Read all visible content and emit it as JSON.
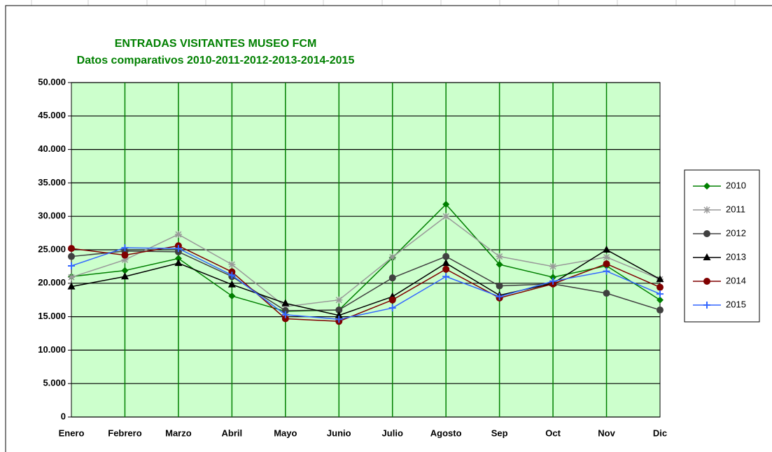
{
  "chart_data": {
    "type": "line",
    "title": "ENTRADAS VISITANTES MUSEO FCM",
    "subtitle": "Datos comparativos  2010-2011-2012-2013-2014-2015",
    "categories": [
      "Enero",
      "Febrero",
      "Marzo",
      "Abril",
      "Mayo",
      "Junio",
      "Julio",
      "Agosto",
      "Sep",
      "Oct",
      "Nov",
      "Dic"
    ],
    "ylim": [
      0,
      50000
    ],
    "yticks": [
      0,
      {
        "value": 5000,
        "label": "5.000"
      },
      {
        "value": 10000,
        "label": "10.000"
      },
      {
        "value": 15000,
        "label": "15.000"
      },
      {
        "value": 20000,
        "label": "20.000"
      },
      {
        "value": 25000,
        "label": "25.000"
      },
      {
        "value": 30000,
        "label": "30.000"
      },
      {
        "value": 35000,
        "label": "35.000"
      },
      {
        "value": 40000,
        "label": "40.000"
      },
      {
        "value": 45000,
        "label": "45.000"
      },
      {
        "value": 50000,
        "label": "50.000"
      }
    ],
    "grid": true,
    "legend": "right",
    "plot_background": "#ccffcc",
    "series": [
      {
        "name": "2010",
        "color": "#008000",
        "marker": "diamond",
        "values": [
          21000,
          21900,
          23700,
          18100,
          15800,
          16000,
          23800,
          31800,
          22800,
          20900,
          22600,
          17500
        ]
      },
      {
        "name": "2011",
        "color": "#999999",
        "marker": "star",
        "values": [
          20900,
          23500,
          27300,
          22800,
          16500,
          17500,
          23900,
          30000,
          24000,
          22500,
          23900,
          20600
        ]
      },
      {
        "name": "2012",
        "color": "#404040",
        "marker": "circle",
        "values": [
          24000,
          24800,
          24700,
          21000,
          15900,
          16000,
          20800,
          24000,
          19600,
          19900,
          18500,
          16000
        ]
      },
      {
        "name": "2013",
        "color": "#000000",
        "marker": "triangle",
        "values": [
          19500,
          21000,
          23000,
          19800,
          17000,
          15200,
          18000,
          23000,
          18200,
          20000,
          25000,
          20600
        ]
      },
      {
        "name": "2014",
        "color": "#800000",
        "marker": "circle",
        "values": [
          25200,
          24200,
          25600,
          21700,
          14700,
          14300,
          17500,
          22100,
          17800,
          19900,
          22900,
          19400
        ]
      },
      {
        "name": "2015",
        "color": "#3366ff",
        "marker": "plus",
        "values": [
          22600,
          25300,
          25200,
          21200,
          15300,
          14600,
          16300,
          21000,
          18000,
          20300,
          21800,
          18400
        ]
      }
    ]
  }
}
